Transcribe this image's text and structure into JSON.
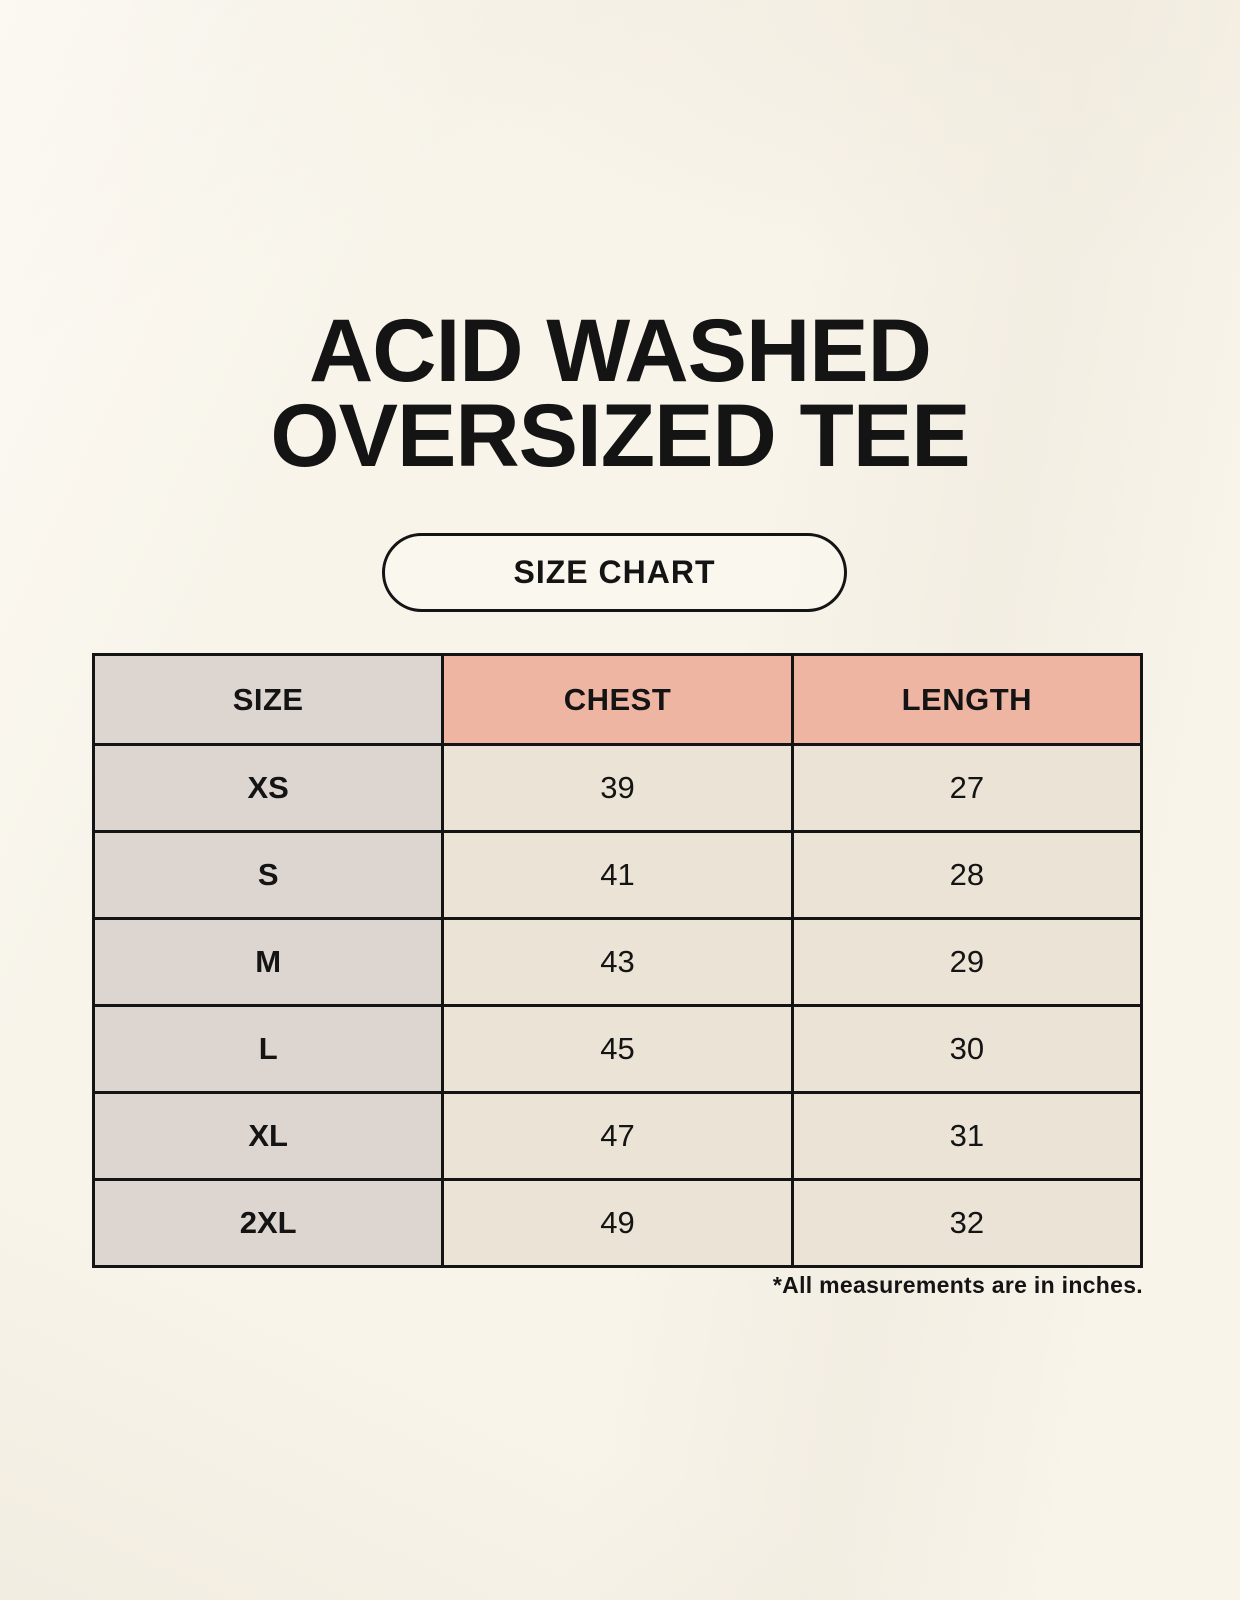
{
  "header": {
    "title_line1": "ACID WASHED",
    "title_line2": "OVERSIZED TEE",
    "badge_label": "SIZE CHART"
  },
  "table": {
    "columns": [
      "SIZE",
      "CHEST",
      "LENGTH"
    ],
    "rows": [
      {
        "size": "XS",
        "chest": "39",
        "length": "27"
      },
      {
        "size": "S",
        "chest": "41",
        "length": "28"
      },
      {
        "size": "M",
        "chest": "43",
        "length": "29"
      },
      {
        "size": "L",
        "chest": "45",
        "length": "30"
      },
      {
        "size": "XL",
        "chest": "47",
        "length": "31"
      },
      {
        "size": "2XL",
        "chest": "49",
        "length": "32"
      }
    ]
  },
  "footnote": "*All measurements are in inches.",
  "colors": {
    "background": "#f8f4ea",
    "size_column_bg": "#ddd5d0",
    "accent_header_bg": "#efb5a3",
    "value_cell_bg": "#ebe4d6",
    "border": "#141414",
    "text": "#141414"
  },
  "chart_data": {
    "type": "table",
    "title": "ACID WASHED OVERSIZED TEE",
    "subtitle": "SIZE CHART",
    "columns": [
      "SIZE",
      "CHEST",
      "LENGTH"
    ],
    "rows": [
      [
        "XS",
        39,
        27
      ],
      [
        "S",
        41,
        28
      ],
      [
        "M",
        43,
        29
      ],
      [
        "L",
        45,
        30
      ],
      [
        "XL",
        47,
        31
      ],
      [
        "2XL",
        49,
        32
      ]
    ],
    "note": "*All measurements are in inches.",
    "units": "inches",
    "layout": {
      "header_accent_columns": [
        "CHEST",
        "LENGTH"
      ],
      "grid": true
    }
  }
}
